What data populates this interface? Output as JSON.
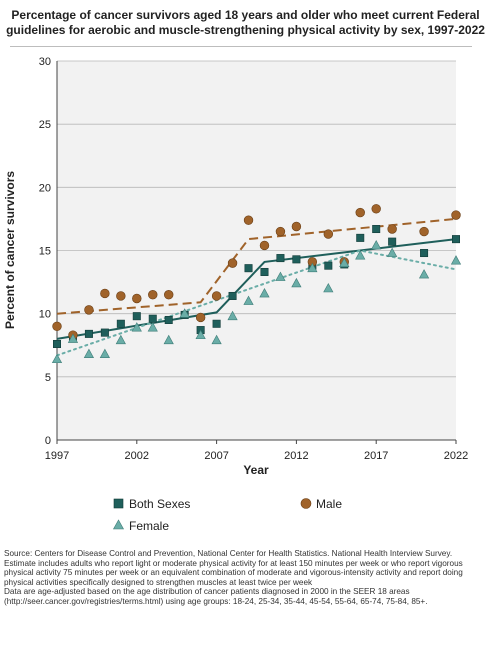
{
  "title": "Percentage of cancer survivors aged 18 years and older who meet current Federal guidelines for aerobic and muscle-strengthening physical activity by sex, 1997-2022",
  "chart_data": {
    "type": "scatter",
    "title": "Percentage of cancer survivors aged 18 years and older who meet current Federal guidelines for aerobic and muscle-strengthening physical activity by sex, 1997-2022",
    "xlabel": "Year",
    "ylabel": "Percent of cancer survivors",
    "xlim": [
      1997,
      2022
    ],
    "ylim": [
      0,
      30
    ],
    "x_ticks": [
      "1997",
      "2002",
      "2007",
      "2012",
      "2017",
      "2022"
    ],
    "y_ticks": [
      "0",
      "5",
      "10",
      "15",
      "20",
      "25",
      "30"
    ],
    "grid": "horizontal",
    "legend_position": "bottom",
    "series": [
      {
        "name": "Both Sexes",
        "color": "#1f5f5b",
        "marker": "square",
        "points": [
          [
            1997,
            7.6
          ],
          [
            1998,
            8.2
          ],
          [
            1999,
            8.4
          ],
          [
            2000,
            8.5
          ],
          [
            2001,
            9.2
          ],
          [
            2002,
            9.8
          ],
          [
            2003,
            9.6
          ],
          [
            2004,
            9.5
          ],
          [
            2005,
            9.9
          ],
          [
            2006,
            8.7
          ],
          [
            2007,
            9.2
          ],
          [
            2008,
            11.4
          ],
          [
            2009,
            13.6
          ],
          [
            2010,
            13.3
          ],
          [
            2011,
            14.4
          ],
          [
            2012,
            14.3
          ],
          [
            2013,
            13.8
          ],
          [
            2014,
            13.8
          ],
          [
            2015,
            13.9
          ],
          [
            2016,
            16.0
          ],
          [
            2017,
            16.7
          ],
          [
            2018,
            15.7
          ],
          [
            2020,
            14.8
          ],
          [
            2022,
            15.9
          ]
        ],
        "trend": [
          [
            1997,
            8.0
          ],
          [
            2007,
            10.1
          ],
          [
            2010,
            14.1
          ],
          [
            2022,
            15.9
          ]
        ]
      },
      {
        "name": "Male",
        "color": "#a0632a",
        "marker": "circle",
        "points": [
          [
            1997,
            9.0
          ],
          [
            1998,
            8.3
          ],
          [
            1999,
            10.3
          ],
          [
            2000,
            11.6
          ],
          [
            2001,
            11.4
          ],
          [
            2002,
            11.2
          ],
          [
            2003,
            11.5
          ],
          [
            2004,
            11.5
          ],
          [
            2006,
            9.7
          ],
          [
            2007,
            11.4
          ],
          [
            2008,
            14.0
          ],
          [
            2009,
            17.4
          ],
          [
            2010,
            15.4
          ],
          [
            2011,
            16.5
          ],
          [
            2012,
            16.9
          ],
          [
            2013,
            14.1
          ],
          [
            2014,
            16.3
          ],
          [
            2015,
            14.1
          ],
          [
            2016,
            18.0
          ],
          [
            2017,
            18.3
          ],
          [
            2018,
            16.7
          ],
          [
            2020,
            16.5
          ],
          [
            2022,
            17.8
          ]
        ],
        "trend": [
          [
            1997,
            10.0
          ],
          [
            2006,
            10.9
          ],
          [
            2009,
            15.9
          ],
          [
            2022,
            17.5
          ]
        ]
      },
      {
        "name": "Female",
        "color": "#6aada7",
        "marker": "triangle",
        "points": [
          [
            1997,
            6.4
          ],
          [
            1998,
            8.0
          ],
          [
            1999,
            6.8
          ],
          [
            2000,
            6.8
          ],
          [
            2001,
            7.9
          ],
          [
            2002,
            8.9
          ],
          [
            2003,
            8.9
          ],
          [
            2004,
            7.9
          ],
          [
            2005,
            10.0
          ],
          [
            2006,
            8.3
          ],
          [
            2007,
            7.9
          ],
          [
            2008,
            9.8
          ],
          [
            2009,
            11.0
          ],
          [
            2010,
            11.6
          ],
          [
            2011,
            12.9
          ],
          [
            2012,
            12.4
          ],
          [
            2013,
            13.6
          ],
          [
            2014,
            12.0
          ],
          [
            2015,
            14.0
          ],
          [
            2016,
            14.6
          ],
          [
            2017,
            15.4
          ],
          [
            2018,
            14.8
          ],
          [
            2020,
            13.1
          ],
          [
            2022,
            14.2
          ]
        ],
        "trend": [
          [
            1997,
            6.7
          ],
          [
            2016,
            15.0
          ],
          [
            2022,
            13.5
          ]
        ]
      }
    ]
  },
  "legend": {
    "both": "Both Sexes",
    "male": "Male",
    "female": "Female"
  },
  "footnotes": {
    "source": "Source: Centers for Disease Control and Prevention, National Center for Health Statistics. National Health Interview Survey.",
    "estimate": "Estimate includes adults who report light or moderate physical activity for at least 150 minutes per week or who report vigorous physical activity 75 minutes per week or an equivalent combination of moderate and vigorous-intensity activity and report doing physical activities specifically designed to strengthen muscles at least twice per week",
    "age_adjusted": "Data are age-adjusted based on the age distribution of cancer patients diagnosed in 2000 in the SEER 18 areas (http://seer.cancer.gov/registries/terms.html) using age groups: 18-24, 25-34, 35-44, 45-54, 55-64, 65-74, 75-84, 85+."
  }
}
